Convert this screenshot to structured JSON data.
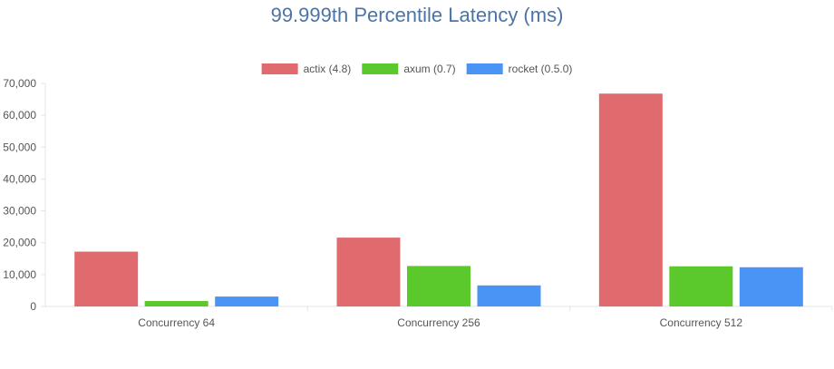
{
  "chart_data": {
    "type": "bar",
    "title": "99.999th Percentile Latency (ms)",
    "xlabel": "",
    "ylabel": "",
    "categories": [
      "Concurrency 64",
      "Concurrency 256",
      "Concurrency 512"
    ],
    "series": [
      {
        "name": "actix (4.8)",
        "color": "#e06b6e",
        "values": [
          17200,
          21600,
          66800
        ]
      },
      {
        "name": "axum (0.7)",
        "color": "#5bc92c",
        "values": [
          1700,
          12700,
          12600
        ]
      },
      {
        "name": "rocket (0.5.0)",
        "color": "#4a94f5",
        "values": [
          3100,
          6600,
          12300
        ]
      }
    ],
    "ylim": [
      0,
      70000
    ],
    "yticks": [
      0,
      10000,
      20000,
      30000,
      40000,
      50000,
      60000,
      70000
    ],
    "ytick_labels": [
      "0",
      "10,000",
      "20,000",
      "30,000",
      "40,000",
      "50,000",
      "60,000",
      "70,000"
    ],
    "grid": false,
    "legend_position": "top-center"
  }
}
